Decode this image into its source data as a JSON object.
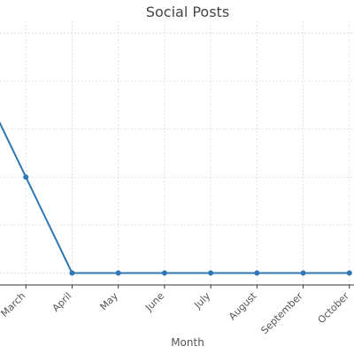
{
  "chart_data": {
    "type": "line",
    "title": "Social Posts",
    "xlabel": "Month",
    "ylabel": "",
    "categories": [
      "March",
      "April",
      "May",
      "June",
      "July",
      "August",
      "September",
      "October"
    ],
    "series": [
      {
        "values": [
          2,
          0,
          0,
          0,
          0,
          0,
          0,
          0
        ]
      }
    ],
    "ylim": [
      -0.25,
      5.25
    ],
    "grid": true,
    "color": "#2f77b4",
    "x_visible_range": [
      -0.56,
      7.1
    ]
  }
}
